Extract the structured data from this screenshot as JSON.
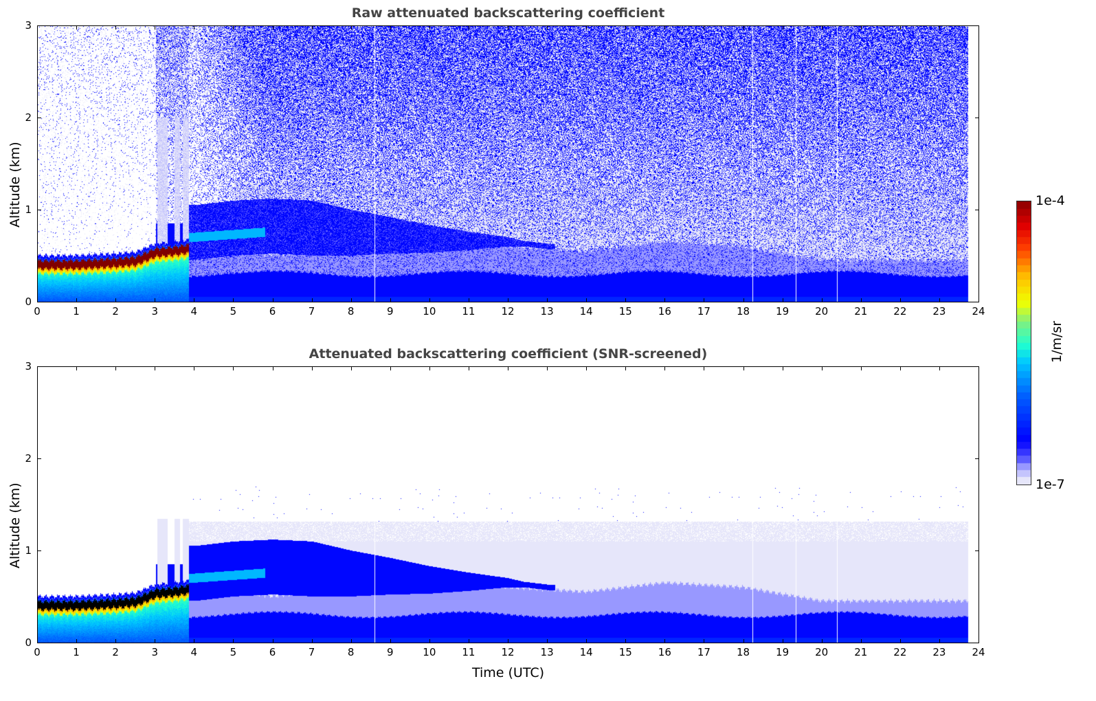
{
  "chart_data": [
    {
      "type": "heatmap",
      "title": "Raw attenuated backscattering coefficient",
      "xlabel": "",
      "ylabel": "Altitude (km)",
      "xlim": [
        0,
        24
      ],
      "ylim": [
        0,
        3
      ],
      "xticks": [
        "0",
        "1",
        "2",
        "3",
        "4",
        "5",
        "6",
        "7",
        "8",
        "9",
        "10",
        "11",
        "12",
        "13",
        "14",
        "15",
        "16",
        "17",
        "18",
        "19",
        "20",
        "21",
        "22",
        "23",
        "24"
      ],
      "yticks": [
        "0",
        "1",
        "2",
        "3"
      ],
      "screened": false
    },
    {
      "type": "heatmap",
      "title": "Attenuated backscattering coefficient (SNR-screened)",
      "xlabel": "Time (UTC)",
      "ylabel": "Altitude (km)",
      "xlim": [
        0,
        24
      ],
      "ylim": [
        0,
        3
      ],
      "xticks": [
        "0",
        "1",
        "2",
        "3",
        "4",
        "5",
        "6",
        "7",
        "8",
        "9",
        "10",
        "11",
        "12",
        "13",
        "14",
        "15",
        "16",
        "17",
        "18",
        "19",
        "20",
        "21",
        "22",
        "23",
        "24"
      ],
      "yticks": [
        "0",
        "1",
        "2",
        "3"
      ],
      "screened": true
    }
  ],
  "colorbar": {
    "label": "1/m/sr",
    "max_label": "1e-4",
    "min_label": "1e-7",
    "range": [
      1e-07,
      0.0001
    ],
    "scale": "log",
    "colors": [
      "#e6e6fa",
      "#b0b0ff",
      "#5050ff",
      "#0000ff",
      "#0060ff",
      "#00c8ff",
      "#20ffd0",
      "#80f080",
      "#f0ff00",
      "#ffc000",
      "#ff4000",
      "#e00000",
      "#800000"
    ]
  },
  "field": {
    "data_end_hour": 23.75,
    "missing_profiles_hours": [
      8.6,
      18.25,
      19.35,
      20.4
    ],
    "cloud_layer_center_km": {
      "t": [
        0,
        1,
        2,
        2.5,
        3.0,
        3.5,
        3.8
      ],
      "z": [
        0.4,
        0.4,
        0.42,
        0.44,
        0.53,
        0.55,
        0.57
      ]
    },
    "residual_layer_top_km": {
      "t": [
        3.8,
        5,
        6,
        7,
        9,
        10,
        12,
        14,
        16,
        18,
        20,
        23.75
      ],
      "z": [
        0.6,
        0.55,
        0.5,
        0.55,
        0.7,
        0.7,
        0.6,
        0.55,
        0.65,
        0.6,
        0.45,
        0.45
      ]
    },
    "elevated_layer_center_km": {
      "t": [
        4,
        5,
        6,
        7,
        8,
        9,
        10,
        11,
        12,
        13
      ],
      "z": [
        0.85,
        0.9,
        0.92,
        0.9,
        0.85,
        0.82,
        0.78,
        0.76,
        0.75,
        0.7
      ]
    },
    "mixed_layer_top_km": 0.3,
    "screened_signal_top_km": 1.3
  }
}
